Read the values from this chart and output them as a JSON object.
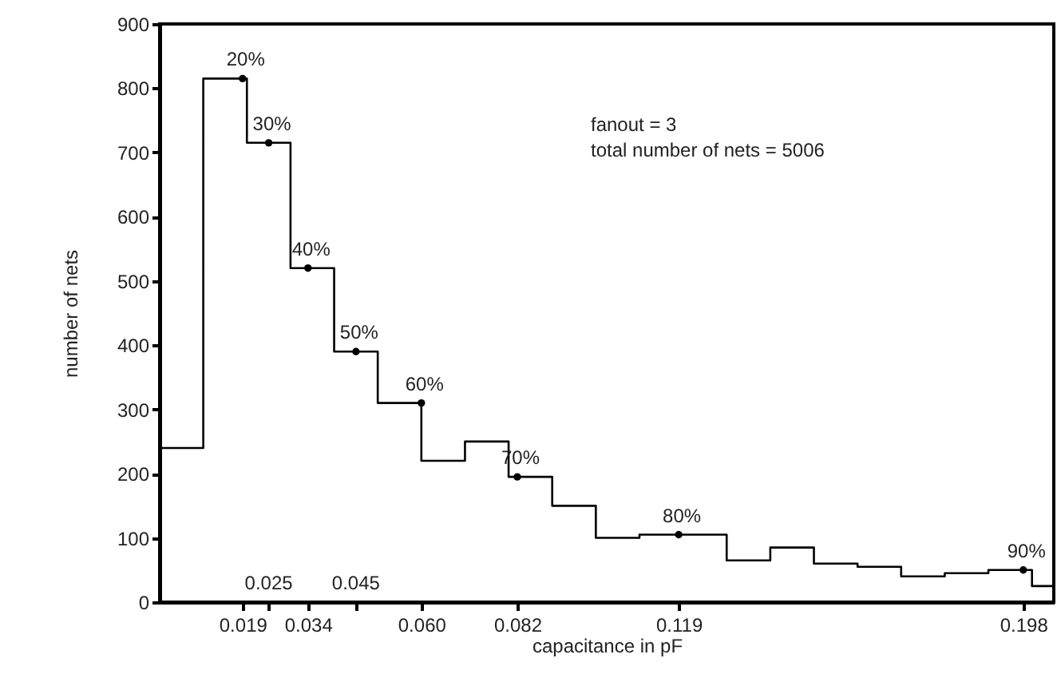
{
  "chart_data": {
    "type": "histogram",
    "xlabel": "capacitance in pF",
    "ylabel": "number of nets",
    "bins": [
      0,
      0.01,
      0.02,
      0.03,
      0.04,
      0.05,
      0.06,
      0.07,
      0.08,
      0.09,
      0.1,
      0.11,
      0.12,
      0.13,
      0.14,
      0.15,
      0.16,
      0.17,
      0.18,
      0.19,
      0.2,
      0.205
    ],
    "values": [
      240,
      815,
      715,
      520,
      390,
      310,
      220,
      250,
      195,
      150,
      100,
      105,
      105,
      65,
      85,
      60,
      55,
      40,
      45,
      50,
      25
    ],
    "color": "#000000",
    "series": [
      {
        "type": "scatter",
        "color": "#000000",
        "x": [
          0.019,
          0.025,
          0.034,
          0.045,
          0.06,
          0.082,
          0.119,
          0.198
        ],
        "values": [
          815,
          715,
          520,
          390,
          310,
          195,
          105,
          50
        ]
      }
    ],
    "marker": "circle",
    "xlim": [
      0,
      0.205
    ],
    "xticks": [
      0.019,
      {
        "value": 0.025,
        "label": null
      },
      0.034,
      {
        "value": 0.045,
        "label": null
      },
      {
        "value": 0.06,
        "label": "0.060"
      },
      0.082,
      0.119,
      0.198
    ],
    "ylim": [
      0,
      900
    ],
    "yticks": [
      0,
      100,
      200,
      300,
      400,
      500,
      600,
      700,
      800,
      900
    ],
    "grid": false,
    "annotations": [
      "fanout = 3",
      "total number of nets = 5006",
      "0.025",
      "0.045",
      {
        "text": "20%",
        "x": 0.019,
        "y": 815
      },
      {
        "text": "30%",
        "x": 0.025,
        "y": 715
      },
      {
        "text": "40%",
        "x": 0.034,
        "y": 520
      },
      {
        "text": "50%",
        "x": 0.045,
        "y": 390
      },
      {
        "text": "60%",
        "x": 0.06,
        "y": 310
      },
      {
        "text": "70%",
        "x": 0.082,
        "y": 195
      },
      {
        "text": "80%",
        "x": 0.119,
        "y": 105
      },
      {
        "text": "90%",
        "x": 0.198,
        "y": 50
      }
    ]
  }
}
